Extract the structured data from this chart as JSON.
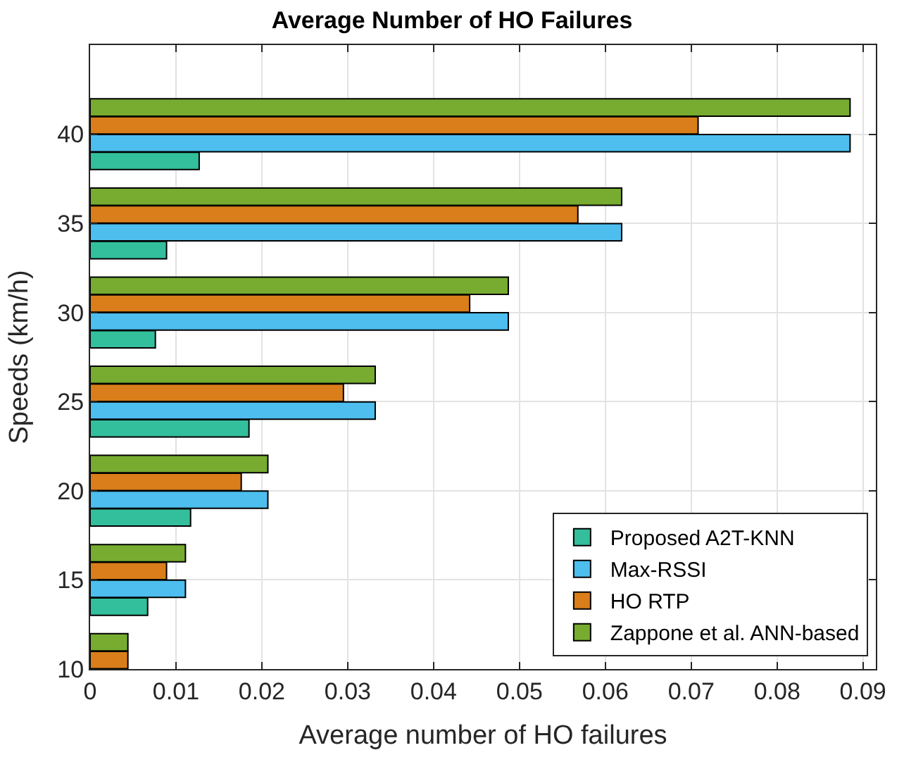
{
  "chart_data": {
    "type": "bar",
    "orientation": "horizontal",
    "title": "Average Number of HO Failures",
    "xlabel": "Average number of HO failures",
    "ylabel": "Speeds (km/h)",
    "x": [
      10,
      15,
      20,
      25,
      30,
      35,
      40
    ],
    "series": [
      {
        "name": "Proposed A2T-KNN",
        "color": "#33bf9b",
        "values": [
          null,
          0.0067,
          0.0117,
          0.0185,
          0.0076,
          0.0089,
          0.0127
        ]
      },
      {
        "name": "Max-RSSI",
        "color": "#4dbeee",
        "values": [
          null,
          0.0111,
          0.0207,
          0.0332,
          0.0487,
          0.0619,
          0.0885
        ]
      },
      {
        "name": "HO RTP",
        "color": "#d97e1a",
        "values": [
          0.0044,
          0.0089,
          0.0176,
          0.0295,
          0.0442,
          0.0568,
          0.0708
        ]
      },
      {
        "name": "Zappone et al. ANN-based",
        "color": "#77ac30",
        "values": [
          0.0044,
          0.0111,
          0.0207,
          0.0332,
          0.0487,
          0.0619,
          0.0885
        ]
      }
    ],
    "xlim": [
      0,
      0.0915
    ],
    "xticks": [
      0,
      0.01,
      0.02,
      0.03,
      0.04,
      0.05,
      0.06,
      0.07,
      0.08,
      0.09
    ],
    "ylim": [
      10,
      45
    ],
    "yticks": [
      10,
      15,
      20,
      25,
      30,
      35,
      40
    ],
    "grid": true,
    "legend": "bottom right"
  }
}
